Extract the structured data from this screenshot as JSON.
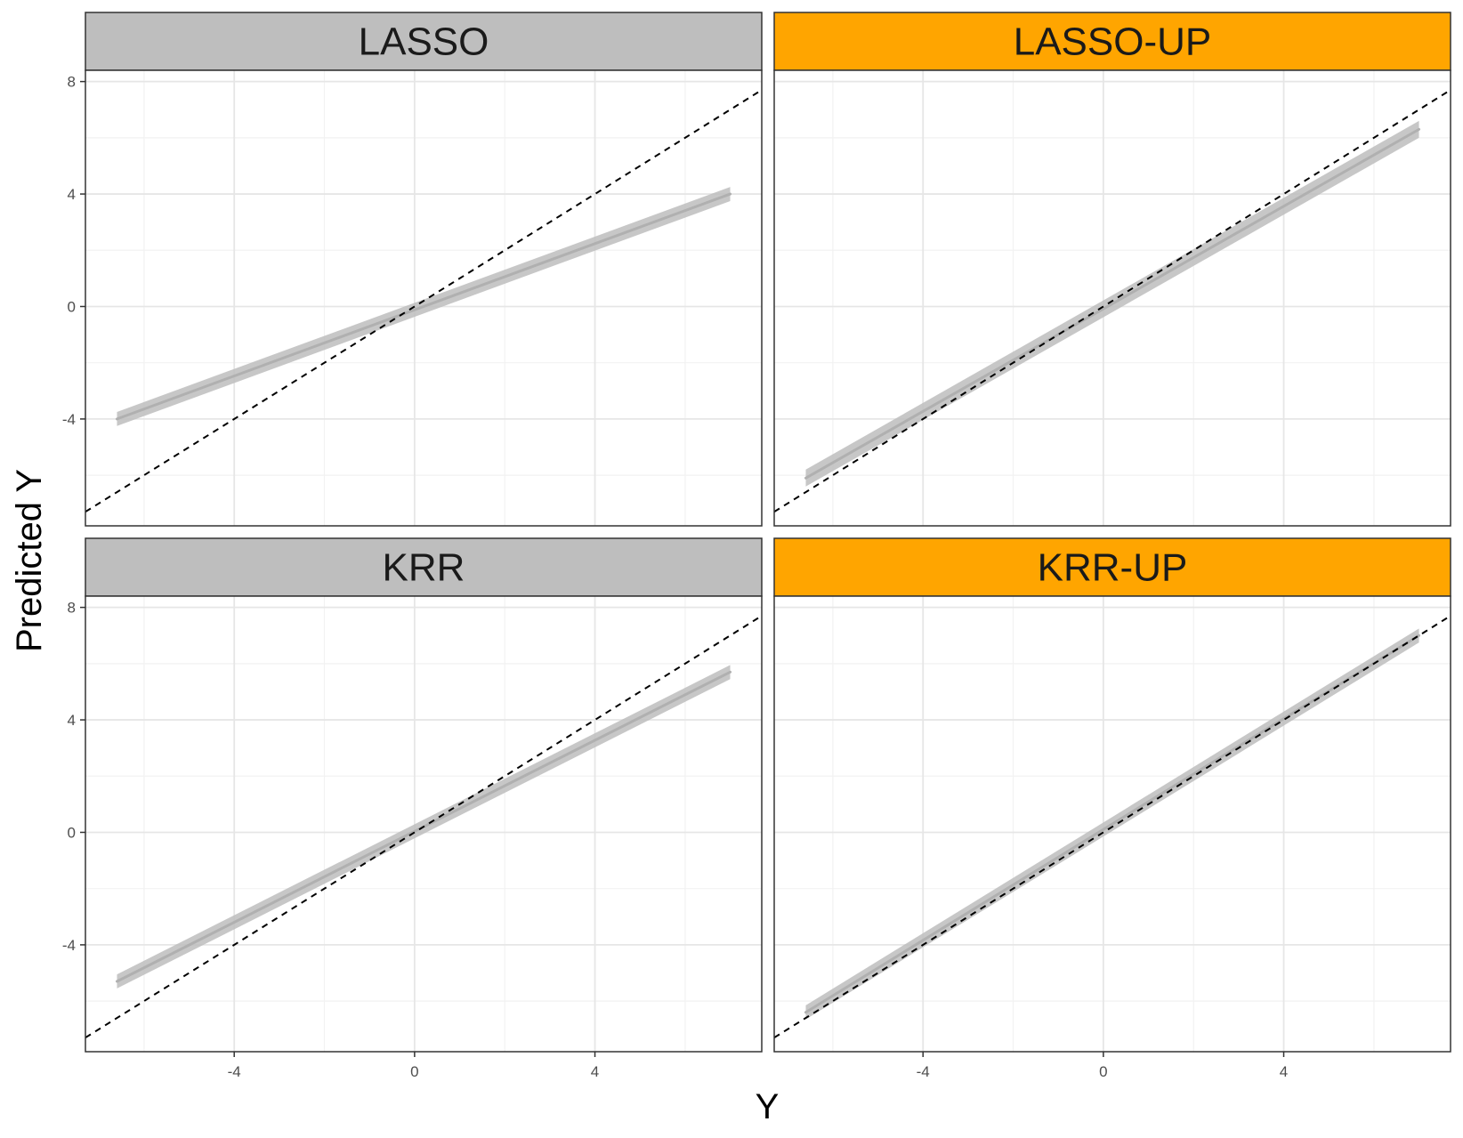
{
  "chart_data": {
    "type": "line",
    "xlabel": "Y",
    "ylabel": "Predicted Y",
    "xlim": [
      -7.3,
      7.7
    ],
    "ylim": [
      -7.8,
      8.4
    ],
    "x_ticks": [
      -4,
      0,
      4
    ],
    "y_ticks": [
      -4,
      0,
      4,
      8
    ],
    "grid": true,
    "reference_line": {
      "slope": 1,
      "intercept": 0,
      "style": "dashed",
      "color": "#000000"
    },
    "band_color": "#bdbdbd",
    "panels": [
      {
        "title": "LASSO",
        "strip_color": "#bebebe",
        "fit_start": [
          -6.6,
          -4.0
        ],
        "fit_end": [
          7.0,
          4.0
        ],
        "band_halfwidth": 0.25
      },
      {
        "title": "LASSO-UP",
        "strip_color": "#ffa500",
        "fit_start": [
          -6.6,
          -6.1
        ],
        "fit_end": [
          7.0,
          6.3
        ],
        "band_halfwidth": 0.3
      },
      {
        "title": "KRR",
        "strip_color": "#bebebe",
        "fit_start": [
          -6.6,
          -5.3
        ],
        "fit_end": [
          7.0,
          5.7
        ],
        "band_halfwidth": 0.25
      },
      {
        "title": "KRR-UP",
        "strip_color": "#ffa500",
        "fit_start": [
          -6.6,
          -6.4
        ],
        "fit_end": [
          7.0,
          7.0
        ],
        "band_halfwidth": 0.25
      }
    ]
  }
}
